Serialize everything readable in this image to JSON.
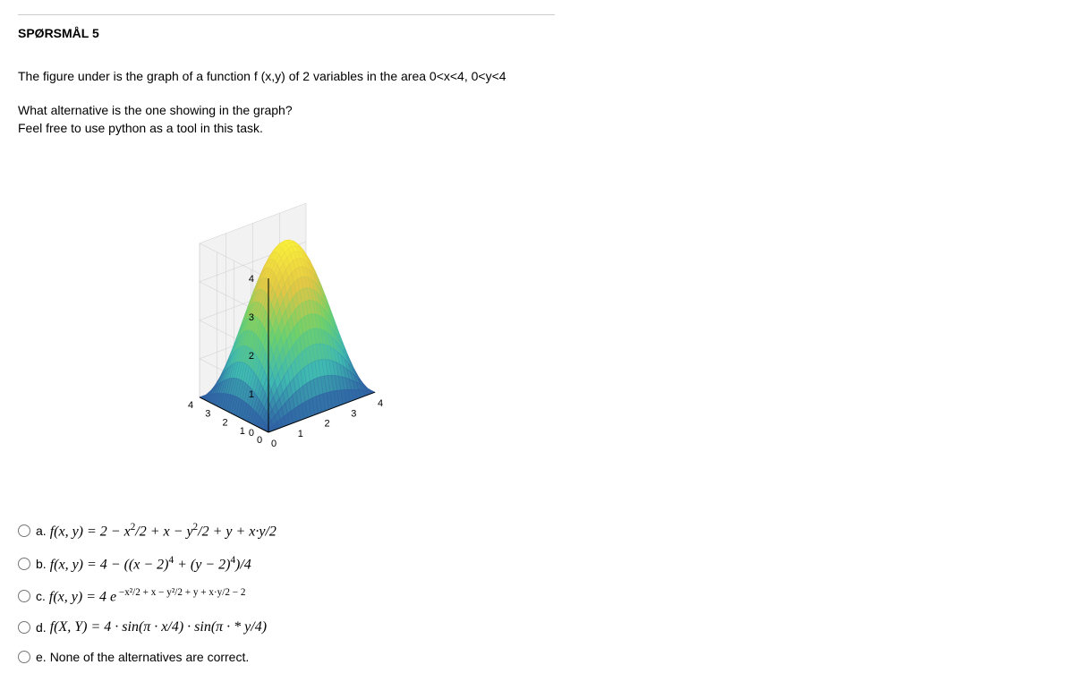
{
  "question": {
    "label": "SPØRSMÅL 5",
    "prompt_line1": "The figure under is the graph of a function f (x,y) of 2 variables in the area 0<x<4, 0<y<4",
    "prompt_line2": "What alternative is the one showing in the graph?",
    "prompt_line3": "Feel free to use python as a tool in this task."
  },
  "chart": {
    "type": "3d-surface",
    "z_ticks": [
      "0",
      "1",
      "2",
      "3",
      "4"
    ],
    "x_ticks": [
      "0",
      "1",
      "2",
      "3",
      "4"
    ],
    "y_ticks": [
      "0",
      "1",
      "2",
      "3",
      "4"
    ],
    "xlim": [
      0,
      4
    ],
    "ylim": [
      0,
      4
    ],
    "zlim": [
      0,
      4
    ],
    "grid_count": 30,
    "axis_color": "#000000",
    "tick_color": "#000000",
    "grid_pane_color": "#f2f2f2",
    "grid_line_color": "#cccccc",
    "surface_colors": {
      "low": "#2e5fa3",
      "mid_low": "#3fb9b1",
      "mid": "#6fd06a",
      "mid_high": "#e2c545",
      "high": "#f9f13a"
    },
    "tick_fontsize": 11,
    "wire_stroke_width": 0.6
  },
  "options": {
    "a": {
      "letter": "a.",
      "plain": "",
      "is_math": true
    },
    "b": {
      "letter": "b.",
      "plain": "",
      "is_math": true
    },
    "c": {
      "letter": "c.",
      "plain": "",
      "is_math": true
    },
    "d": {
      "letter": "d.",
      "plain": "",
      "is_math": true
    },
    "e": {
      "letter": "e.",
      "plain": "None of the alternatives are correct.",
      "is_math": false
    }
  },
  "math_text": {
    "a_pre": "f",
    "a_args": "(x, y) = 2 − x",
    "a_exp1": "2",
    "a_mid1": "/2  +  x  − y",
    "a_exp2": "2",
    "a_mid2": "/2 + y + x·y/2",
    "b_pre": "f",
    "b_args": "(x, y)  = 4 − ((x − 2)",
    "b_exp1": "4",
    "b_mid1": " + (y − 2)",
    "b_exp2": "4",
    "b_mid2": ")/4",
    "c_pre": "f",
    "c_args": "(x, y) = 4  e",
    "c_exp_full": " −x²/2  +  x  − y²/2 + y + x·y/2 − 2",
    "d_pre": "f",
    "d_args": "(X, Y) = 4 · sin(π · x/4) · sin(π · * y/4)"
  }
}
